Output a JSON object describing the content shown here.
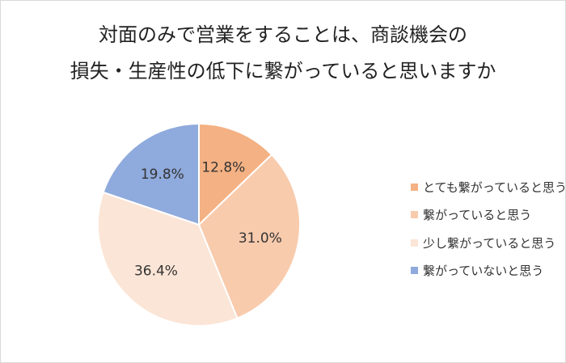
{
  "chart_data": {
    "type": "pie",
    "title": "対面のみで営業をすることは、商談機会の損失・生産性の低下に繋がっていると思いますか",
    "title_lines": [
      "対面のみで営業をすることは、商談機会の",
      "損失・生産性の低下に繋がっていると思いますか"
    ],
    "categories": [
      "とても繋がっていると思う",
      "繋がっていると思う",
      "少し繋がっていると思う",
      "繋がっていないと思う"
    ],
    "values": [
      12.8,
      31.0,
      36.4,
      19.8
    ],
    "labels": [
      "12.8%",
      "31.0%",
      "36.4%",
      "19.8%"
    ],
    "colors": [
      "#f4b183",
      "#f8cbad",
      "#fbe5d6",
      "#8faadc"
    ],
    "legend_position": "right",
    "start_angle": "12 o'clock, clockwise"
  },
  "legend": {
    "items": [
      {
        "label": "とても繋がっていると思う",
        "color": "#f4b183"
      },
      {
        "label": "繋がっていると思う",
        "color": "#f8cbad"
      },
      {
        "label": "少し繋がっていると思う",
        "color": "#fbe5d6"
      },
      {
        "label": "繋がっていないと思う",
        "color": "#8faadc"
      }
    ]
  }
}
